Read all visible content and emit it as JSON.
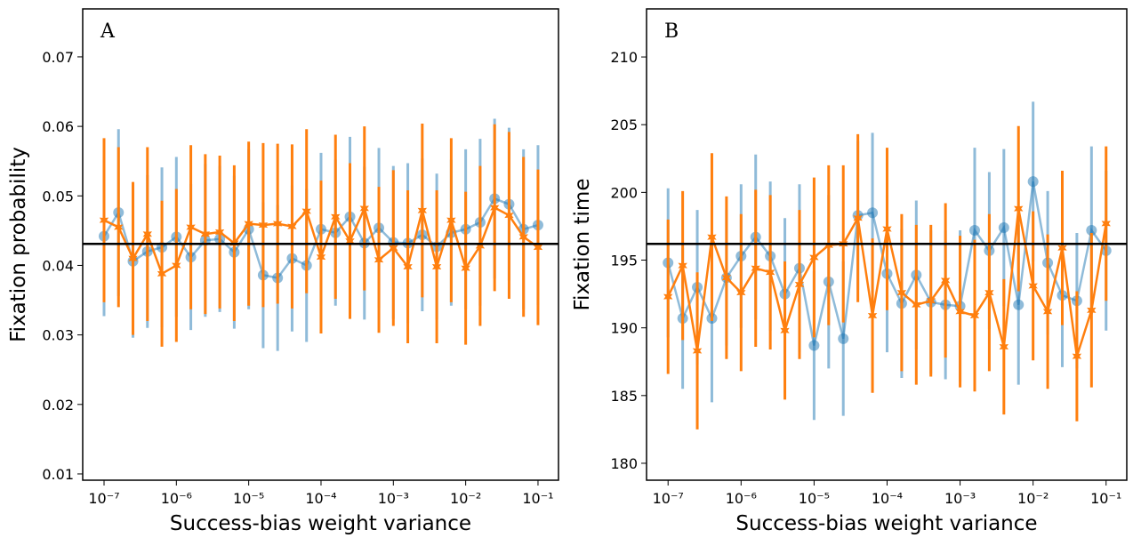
{
  "chart_data": [
    {
      "type": "errorbar",
      "panel_label": "A",
      "xlabel": "Success-bias weight variance",
      "ylabel": "Fixation probability",
      "xscale": "log",
      "xlim": [
        5.07e-08,
        0.192
      ],
      "ylim": [
        0.0091,
        0.0769
      ],
      "xticks": [
        {
          "value": 1e-07,
          "label": "10⁻⁷"
        },
        {
          "value": 1e-06,
          "label": "10⁻⁶"
        },
        {
          "value": 1e-05,
          "label": "10⁻⁵"
        },
        {
          "value": 0.0001,
          "label": "10⁻⁴"
        },
        {
          "value": 0.001,
          "label": "10⁻³"
        },
        {
          "value": 0.01,
          "label": "10⁻²"
        },
        {
          "value": 0.1,
          "label": "10⁻¹"
        }
      ],
      "yticks": [
        0.01,
        0.02,
        0.03,
        0.04,
        0.05,
        0.06,
        0.07
      ],
      "reference_line": 0.0431,
      "x": [
        1e-07,
        1.585e-07,
        2.512e-07,
        3.981e-07,
        6.31e-07,
        1e-06,
        1.585e-06,
        2.512e-06,
        3.981e-06,
        6.31e-06,
        1e-05,
        1.585e-05,
        2.512e-05,
        3.981e-05,
        6.31e-05,
        0.0001,
        0.0001585,
        0.0002512,
        0.0003981,
        0.000631,
        0.001,
        0.001585,
        0.002512,
        0.003981,
        0.00631,
        0.01,
        0.01585,
        0.02512,
        0.03981,
        0.0631,
        0.1
      ],
      "series": [
        {
          "color": "#1f77b4",
          "marker": "circle",
          "values": [
            0.0442,
            0.0476,
            0.0406,
            0.042,
            0.0426,
            0.0441,
            0.0412,
            0.0436,
            0.0438,
            0.0419,
            0.0452,
            0.0386,
            0.0382,
            0.041,
            0.04,
            0.0452,
            0.0447,
            0.047,
            0.0432,
            0.0454,
            0.0433,
            0.0432,
            0.0444,
            0.0427,
            0.0447,
            0.0452,
            0.0462,
            0.0496,
            0.0488,
            0.0452,
            0.0458
          ],
          "errors": [
            0.0115,
            0.012,
            0.011,
            0.011,
            0.0115,
            0.0115,
            0.0105,
            0.011,
            0.0105,
            0.011,
            0.0115,
            0.0105,
            0.0105,
            0.0105,
            0.011,
            0.011,
            0.0105,
            0.0115,
            0.011,
            0.0115,
            0.011,
            0.0115,
            0.011,
            0.0105,
            0.0105,
            0.0115,
            0.012,
            0.0115,
            0.011,
            0.0115,
            0.0115
          ]
        },
        {
          "color": "#ff7f0e",
          "marker": "star",
          "values": [
            0.0465,
            0.0455,
            0.041,
            0.0445,
            0.0388,
            0.04,
            0.0455,
            0.0445,
            0.0448,
            0.0432,
            0.046,
            0.0458,
            0.046,
            0.0456,
            0.0478,
            0.0412,
            0.047,
            0.0435,
            0.0482,
            0.0408,
            0.0425,
            0.0398,
            0.0479,
            0.0398,
            0.0465,
            0.0396,
            0.0428,
            0.0483,
            0.0472,
            0.0441,
            0.0426
          ],
          "errors": [
            0.0118,
            0.0115,
            0.011,
            0.0125,
            0.0105,
            0.011,
            0.0118,
            0.0115,
            0.011,
            0.0112,
            0.0118,
            0.0118,
            0.0115,
            0.0118,
            0.0118,
            0.011,
            0.0118,
            0.0112,
            0.0118,
            0.0105,
            0.0112,
            0.011,
            0.0125,
            0.011,
            0.0118,
            0.011,
            0.0115,
            0.012,
            0.012,
            0.0115,
            0.0112
          ]
        }
      ]
    },
    {
      "type": "errorbar",
      "panel_label": "B",
      "xlabel": "Success-bias weight variance",
      "ylabel": "Fixation time",
      "xscale": "log",
      "xlim": [
        5.07e-08,
        0.192
      ],
      "ylim": [
        178.75,
        213.55
      ],
      "xticks": [
        {
          "value": 1e-07,
          "label": "10⁻⁷"
        },
        {
          "value": 1e-06,
          "label": "10⁻⁶"
        },
        {
          "value": 1e-05,
          "label": "10⁻⁵"
        },
        {
          "value": 0.0001,
          "label": "10⁻⁴"
        },
        {
          "value": 0.001,
          "label": "10⁻³"
        },
        {
          "value": 0.01,
          "label": "10⁻²"
        },
        {
          "value": 0.1,
          "label": "10⁻¹"
        }
      ],
      "yticks": [
        180,
        185,
        190,
        195,
        200,
        205,
        210
      ],
      "reference_line": 196.2,
      "x": [
        1e-07,
        1.585e-07,
        2.512e-07,
        3.981e-07,
        6.31e-07,
        1e-06,
        1.585e-06,
        2.512e-06,
        3.981e-06,
        6.31e-06,
        1e-05,
        1.585e-05,
        2.512e-05,
        3.981e-05,
        6.31e-05,
        0.0001,
        0.0001585,
        0.0002512,
        0.0003981,
        0.000631,
        0.001,
        0.001585,
        0.002512,
        0.003981,
        0.00631,
        0.01,
        0.01585,
        0.02512,
        0.03981,
        0.0631,
        0.1
      ],
      "series": [
        {
          "color": "#1f77b4",
          "marker": "circle",
          "values": [
            194.8,
            190.7,
            193.0,
            190.7,
            193.7,
            195.3,
            196.7,
            195.3,
            192.5,
            194.4,
            188.7,
            193.4,
            189.2,
            198.3,
            198.5,
            194.0,
            191.8,
            193.9,
            191.9,
            191.7,
            191.6,
            197.2,
            195.7,
            197.4,
            191.7,
            200.8,
            194.8,
            192.4,
            192.0,
            197.2,
            195.7
          ],
          "errors": [
            5.5,
            5.2,
            5.7,
            6.2,
            5.0,
            5.3,
            6.1,
            5.5,
            5.6,
            6.2,
            5.5,
            6.4,
            5.7,
            5.5,
            5.9,
            5.8,
            5.5,
            5.5,
            5.3,
            5.5,
            5.6,
            6.1,
            5.8,
            5.8,
            5.9,
            5.9,
            5.3,
            5.3,
            5.0,
            6.2,
            5.9
          ]
        },
        {
          "color": "#ff7f0e",
          "marker": "star",
          "values": [
            192.3,
            194.6,
            188.3,
            196.7,
            193.7,
            192.6,
            194.4,
            194.1,
            189.8,
            193.2,
            195.2,
            196.1,
            196.2,
            198.1,
            190.9,
            197.3,
            192.6,
            191.7,
            192.0,
            193.5,
            191.2,
            190.9,
            192.6,
            188.6,
            198.8,
            193.1,
            191.2,
            195.9,
            187.9,
            191.3,
            197.7
          ],
          "errors": [
            5.7,
            5.5,
            5.8,
            6.2,
            6.0,
            5.8,
            5.8,
            5.7,
            5.1,
            5.5,
            5.9,
            5.9,
            5.8,
            6.2,
            5.7,
            6.0,
            5.8,
            5.9,
            5.6,
            5.7,
            5.6,
            5.6,
            5.8,
            5.0,
            6.1,
            5.5,
            5.7,
            5.7,
            4.8,
            5.7,
            5.7
          ]
        }
      ]
    }
  ]
}
